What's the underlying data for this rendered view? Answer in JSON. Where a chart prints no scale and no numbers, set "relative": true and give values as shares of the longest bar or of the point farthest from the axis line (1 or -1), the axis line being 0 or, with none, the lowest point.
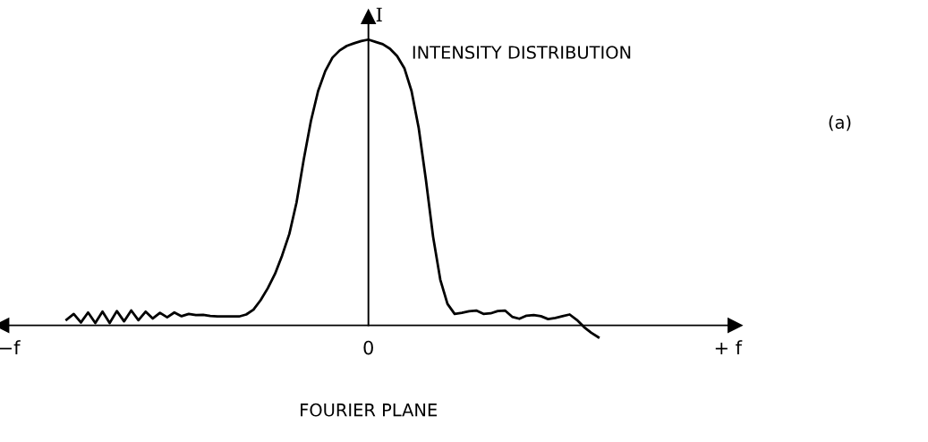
{
  "chart_data": {
    "type": "line",
    "relative": true,
    "xlabel": "FOURIER PLANE",
    "ylabel": "I",
    "annotations": [
      "INTENSITY DISTRIBUTION",
      "(a)"
    ],
    "categories": [
      "−f",
      null,
      null,
      null,
      null,
      null,
      null,
      null,
      null,
      null,
      null,
      null,
      null,
      null,
      null,
      null,
      null,
      null,
      null,
      null,
      null,
      null,
      null,
      null,
      null,
      null,
      null,
      null,
      null,
      null,
      null,
      null,
      null,
      null,
      null,
      null,
      null,
      null,
      null,
      null,
      null,
      null,
      null,
      null,
      null,
      null,
      null,
      null,
      null,
      null,
      "0",
      null,
      null,
      null,
      null,
      null,
      null,
      null,
      null,
      null,
      null,
      null,
      null,
      null,
      null,
      null,
      null,
      null,
      null,
      null,
      null,
      null,
      null,
      null,
      null,
      null,
      null,
      null,
      null,
      null,
      null,
      null,
      null,
      null,
      null,
      null,
      null,
      null,
      null,
      null,
      null,
      null,
      null,
      null,
      null,
      null,
      null,
      null,
      null,
      null,
      "+ f"
    ],
    "grid": false,
    "legend": false,
    "marker": "none",
    "line_style": "solid",
    "series": [
      {
        "color": "#000000",
        "values": [
          null,
          null,
          null,
          null,
          null,
          null,
          null,
          null,
          0.02,
          0.04,
          0.01,
          0.045,
          0.008,
          0.048,
          0.008,
          0.05,
          0.014,
          0.052,
          0.018,
          0.048,
          0.024,
          0.044,
          0.028,
          0.045,
          0.032,
          0.04,
          0.036,
          0.037,
          0.033,
          0.031,
          0.031,
          0.031,
          0.031,
          0.038,
          0.055,
          0.088,
          0.13,
          0.18,
          0.245,
          0.32,
          0.43,
          0.58,
          0.715,
          0.82,
          0.89,
          0.937,
          0.962,
          0.978,
          0.987,
          0.995,
          1,
          0.992,
          0.984,
          0.968,
          0.942,
          0.9,
          0.82,
          0.69,
          0.509,
          0.31,
          0.16,
          0.075,
          0.04,
          0.044,
          0.049,
          0.052,
          0.04,
          0.042,
          0.05,
          0.052,
          0.03,
          0.023,
          0.034,
          0.036,
          0.032,
          0.022,
          0.026,
          0.032,
          0.038,
          0.019,
          -0.006,
          -0.026,
          -0.042,
          null,
          null,
          null,
          null,
          null,
          null,
          null,
          null,
          null,
          null,
          null,
          null,
          null,
          null,
          null,
          null,
          null,
          null
        ]
      }
    ]
  }
}
